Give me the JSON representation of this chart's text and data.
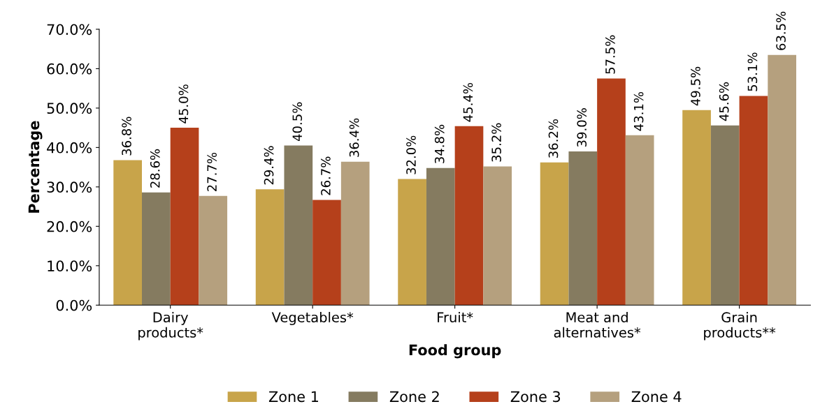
{
  "chart_data": {
    "type": "bar",
    "xlabel": "Food group",
    "ylabel": "Percentage",
    "categories": [
      "Dairy\nproducts*",
      "Vegetables*",
      "Fruit*",
      "Meat and\nalternatives*",
      "Grain\nproducts**"
    ],
    "series": [
      {
        "name": "Zone 1",
        "color": "#c8a44a",
        "values": [
          36.8,
          29.4,
          32.0,
          36.2,
          49.5
        ],
        "value_labels": [
          "36.8%",
          "29.4%",
          "32.0%",
          "36.2%",
          "49.5%"
        ]
      },
      {
        "name": "Zone 2",
        "color": "#857b60",
        "values": [
          28.6,
          40.5,
          34.8,
          39.0,
          45.6
        ],
        "value_labels": [
          "28.6%",
          "40.5%",
          "34.8%",
          "39.0%",
          "45.6%"
        ]
      },
      {
        "name": "Zone 3",
        "color": "#b5401b",
        "values": [
          45.0,
          26.7,
          45.4,
          57.5,
          53.1
        ],
        "value_labels": [
          "45.0%",
          "26.7%",
          "45.4%",
          "57.5%",
          "53.1%"
        ]
      },
      {
        "name": "Zone 4",
        "color": "#b5a07e",
        "values": [
          27.7,
          36.4,
          35.2,
          43.1,
          63.5
        ],
        "value_labels": [
          "27.7%",
          "36.4%",
          "35.2%",
          "43.1%",
          "63.5%"
        ]
      }
    ],
    "ylim": [
      0,
      70
    ],
    "yticks": [
      {
        "value": 0,
        "label": "0.0%"
      },
      {
        "value": 10,
        "label": "10.0%"
      },
      {
        "value": 20,
        "label": "20.0%"
      },
      {
        "value": 30,
        "label": "30.0%"
      },
      {
        "value": 40,
        "label": "40.0%"
      },
      {
        "value": 50,
        "label": "50.0%"
      },
      {
        "value": 60,
        "label": "60.0%"
      },
      {
        "value": 70,
        "label": "70.0%"
      }
    ],
    "grid": false,
    "legend": "bottom"
  }
}
